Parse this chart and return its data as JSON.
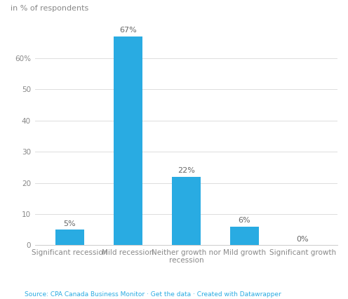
{
  "categories": [
    "Significant recession",
    "Mild recession",
    "Neither growth nor\nrecession",
    "Mild growth",
    "Significant growth"
  ],
  "values": [
    5,
    67,
    22,
    6,
    0
  ],
  "bar_color": "#29abe2",
  "ylabel": "in % of respondents",
  "ylim": [
    0,
    72
  ],
  "yticks": [
    0,
    10,
    20,
    30,
    40,
    50,
    60
  ],
  "ytick_labels": [
    "0",
    "10",
    "20",
    "30",
    "40",
    "50",
    "60%"
  ],
  "source_text": "Source: CPA Canada Business Monitor · Get the data · Created with Datawrapper",
  "background_color": "#ffffff",
  "label_color": "#888888",
  "source_color": "#29abe2",
  "bar_label_color": "#666666",
  "ylabel_fontsize": 8,
  "axis_fontsize": 7.5,
  "label_fontsize": 8,
  "source_fontsize": 6.5,
  "bar_width": 0.5
}
